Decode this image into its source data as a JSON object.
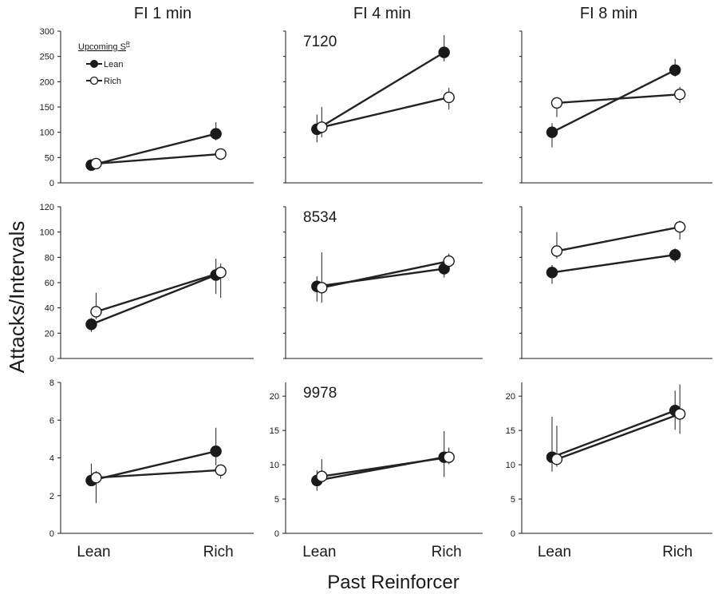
{
  "figure": {
    "ylabel": "Attacks/Intervals",
    "xlabel": "Past Reinforcer",
    "column_titles": [
      "FI 1 min",
      "FI 4 min",
      "FI 8 min"
    ],
    "x_categories": [
      "Lean",
      "Rich"
    ]
  },
  "legend": {
    "title": "Upcoming S",
    "title_sup": "R",
    "items": [
      {
        "label": "Lean",
        "marker": "filled"
      },
      {
        "label": "Rich",
        "marker": "open"
      }
    ]
  },
  "colors": {
    "line": "#222222",
    "filled_marker": "#1a1a1a",
    "open_marker": "#ffffff"
  },
  "chart_data": [
    {
      "type": "line",
      "title": "FI 1 min",
      "subject": "",
      "categories": [
        "Lean",
        "Rich"
      ],
      "ylim": [
        0,
        300
      ],
      "yticks": [
        0,
        50,
        100,
        150,
        200,
        250,
        300
      ],
      "series": [
        {
          "name": "Lean",
          "values": [
            35,
            97
          ],
          "err_low": [
            31,
            84
          ],
          "err_high": [
            39,
            120
          ]
        },
        {
          "name": "Rich",
          "values": [
            38,
            57
          ],
          "err_low": [
            34,
            45
          ],
          "err_high": [
            42,
            65
          ]
        }
      ]
    },
    {
      "type": "line",
      "title": "FI 4 min",
      "subject": "7120",
      "categories": [
        "Lean",
        "Rich"
      ],
      "ylim": [
        0,
        300
      ],
      "yticks": [],
      "series": [
        {
          "name": "Lean",
          "values": [
            106,
            258
          ],
          "err_low": [
            80,
            240
          ],
          "err_high": [
            135,
            292
          ]
        },
        {
          "name": "Rich",
          "values": [
            110,
            169
          ],
          "err_low": [
            90,
            145
          ],
          "err_high": [
            150,
            188
          ]
        }
      ]
    },
    {
      "type": "line",
      "title": "FI 8 min",
      "subject": "",
      "categories": [
        "Lean",
        "Rich"
      ],
      "ylim": [
        0,
        300
      ],
      "yticks": [],
      "series": [
        {
          "name": "Lean",
          "values": [
            100,
            223
          ],
          "err_low": [
            70,
            210
          ],
          "err_high": [
            118,
            245
          ]
        },
        {
          "name": "Rich",
          "values": [
            158,
            175
          ],
          "err_low": [
            130,
            158
          ],
          "err_high": [
            162,
            190
          ]
        }
      ]
    },
    {
      "type": "line",
      "title": "",
      "subject": "",
      "categories": [
        "Lean",
        "Rich"
      ],
      "ylim": [
        0,
        120
      ],
      "yticks": [
        0,
        20,
        40,
        60,
        80,
        100,
        120
      ],
      "series": [
        {
          "name": "Lean",
          "values": [
            27,
            66
          ],
          "err_low": [
            21,
            51
          ],
          "err_high": [
            32,
            79
          ]
        },
        {
          "name": "Rich",
          "values": [
            37,
            68
          ],
          "err_low": [
            31,
            48
          ],
          "err_high": [
            52,
            75
          ]
        }
      ]
    },
    {
      "type": "line",
      "title": "",
      "subject": "8534",
      "categories": [
        "Lean",
        "Rich"
      ],
      "ylim": [
        0,
        120
      ],
      "yticks": [],
      "series": [
        {
          "name": "Lean",
          "values": [
            57,
            71
          ],
          "err_low": [
            45,
            64
          ],
          "err_high": [
            65,
            78
          ]
        },
        {
          "name": "Rich",
          "values": [
            56,
            77
          ],
          "err_low": [
            44,
            72
          ],
          "err_high": [
            84,
            83
          ]
        }
      ]
    },
    {
      "type": "line",
      "title": "",
      "subject": "",
      "categories": [
        "Lean",
        "Rich"
      ],
      "ylim": [
        0,
        120
      ],
      "yticks": [],
      "series": [
        {
          "name": "Lean",
          "values": [
            68,
            82
          ],
          "err_low": [
            59,
            76
          ],
          "err_high": [
            74,
            87
          ]
        },
        {
          "name": "Rich",
          "values": [
            85,
            104
          ],
          "err_low": [
            79,
            94
          ],
          "err_high": [
            100,
            109
          ]
        }
      ]
    },
    {
      "type": "line",
      "title": "",
      "subject": "",
      "categories": [
        "Lean",
        "Rich"
      ],
      "ylim": [
        0,
        8
      ],
      "yticks": [
        0,
        2,
        4,
        6,
        8
      ],
      "series": [
        {
          "name": "Lean",
          "values": [
            2.8,
            4.35
          ],
          "err_low": [
            2.5,
            3.6
          ],
          "err_high": [
            3.7,
            5.6
          ]
        },
        {
          "name": "Rich",
          "values": [
            2.95,
            3.35
          ],
          "err_low": [
            1.6,
            2.9
          ],
          "err_high": [
            3.3,
            3.6
          ]
        }
      ]
    },
    {
      "type": "line",
      "title": "",
      "subject": "9978",
      "categories": [
        "Lean",
        "Rich"
      ],
      "ylim": [
        0,
        22
      ],
      "yticks": [
        0,
        5,
        10,
        15,
        20
      ],
      "series": [
        {
          "name": "Lean",
          "values": [
            7.7,
            11.1
          ],
          "err_low": [
            6.2,
            8.2
          ],
          "err_high": [
            9.2,
            14.9
          ]
        },
        {
          "name": "Rich",
          "values": [
            8.3,
            11.1
          ],
          "err_low": [
            7.3,
            10.1
          ],
          "err_high": [
            10.8,
            12.5
          ]
        }
      ]
    },
    {
      "type": "line",
      "title": "",
      "subject": "",
      "categories": [
        "Lean",
        "Rich"
      ],
      "ylim": [
        0,
        22
      ],
      "yticks": [
        0,
        5,
        10,
        15,
        20
      ],
      "series": [
        {
          "name": "Lean",
          "values": [
            11.1,
            17.9
          ],
          "err_low": [
            9.0,
            15.1
          ],
          "err_high": [
            17.0,
            20.8
          ]
        },
        {
          "name": "Rich",
          "values": [
            10.8,
            17.4
          ],
          "err_low": [
            9.7,
            14.5
          ],
          "err_high": [
            15.7,
            21.7
          ]
        }
      ]
    }
  ]
}
